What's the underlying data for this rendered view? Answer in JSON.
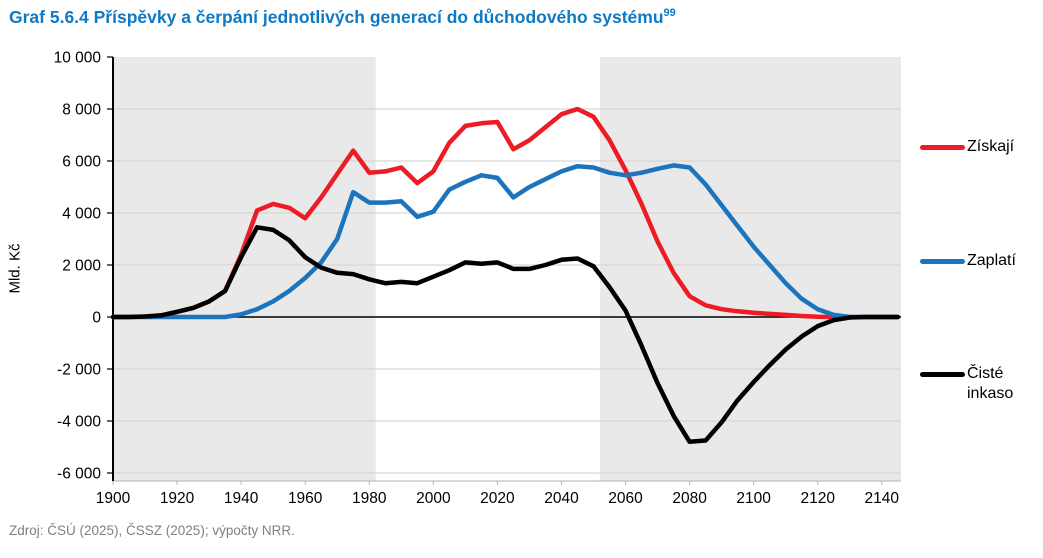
{
  "title": {
    "text": "Graf 5.6.4 Příspěvky a čerpání jednotlivých generací do důchodového systému",
    "footnote_marker": "99"
  },
  "source": "Zdroj: ČSÚ (2025), ČSSZ (2025); výpočty NRR.",
  "legend": {
    "items": [
      {
        "label": "Získají",
        "color": "#ed1c24"
      },
      {
        "label": "Zaplatí",
        "color": "#1c75bc"
      },
      {
        "label": "Čisté inkaso",
        "color": "#000000"
      }
    ]
  },
  "colors": {
    "title": "#0e79c4",
    "plot_background": "#e9e9e9",
    "highlight_band": "#ffffff",
    "gridline": "#d6d6d6",
    "axis": "#000000",
    "bottom_axis": "#b3b3b3",
    "source_text": "#808080"
  },
  "chart_data": {
    "type": "line",
    "title": "Graf 5.6.4 Příspěvky a čerpání jednotlivých generací do důchodového systému (99)",
    "xlabel": "",
    "ylabel": "Mld. Kč",
    "xlim": [
      1900,
      2146
    ],
    "ylim": [
      -6000,
      10000
    ],
    "grid": true,
    "legend_position": "right",
    "highlight_band": {
      "from": 1982,
      "to": 2052
    },
    "y_ticks": [
      {
        "value": 10000,
        "label": "10 000"
      },
      {
        "value": 8000,
        "label": "8 000"
      },
      {
        "value": 6000,
        "label": "6 000"
      },
      {
        "value": 4000,
        "label": "4 000"
      },
      {
        "value": 2000,
        "label": "2 000"
      },
      {
        "value": 0,
        "label": "0"
      },
      {
        "value": -2000,
        "label": "-2 000"
      },
      {
        "value": -4000,
        "label": "-4 000"
      },
      {
        "value": -6000,
        "label": "-6 000"
      }
    ],
    "x_ticks": [
      1900,
      1920,
      1940,
      1960,
      1980,
      2000,
      2020,
      2040,
      2060,
      2080,
      2100,
      2120,
      2140
    ],
    "x": [
      1900,
      1905,
      1910,
      1915,
      1920,
      1925,
      1930,
      1935,
      1940,
      1945,
      1950,
      1955,
      1960,
      1965,
      1970,
      1975,
      1980,
      1985,
      1990,
      1995,
      2000,
      2005,
      2010,
      2015,
      2020,
      2025,
      2030,
      2035,
      2040,
      2045,
      2050,
      2055,
      2060,
      2065,
      2070,
      2075,
      2080,
      2085,
      2090,
      2095,
      2100,
      2105,
      2110,
      2115,
      2120,
      2125,
      2130,
      2135,
      2140,
      2145
    ],
    "series": [
      {
        "name": "Získají",
        "color": "#ed1c24",
        "values": [
          0,
          0,
          20,
          60,
          200,
          350,
          600,
          1000,
          2400,
          4100,
          4350,
          4200,
          3800,
          4600,
          5500,
          6400,
          5550,
          5600,
          5750,
          5150,
          5600,
          6700,
          7350,
          7450,
          7500,
          6450,
          6800,
          7300,
          7800,
          8000,
          7700,
          6800,
          5650,
          4350,
          2900,
          1700,
          800,
          450,
          300,
          220,
          160,
          120,
          80,
          40,
          10,
          0,
          0,
          0,
          0,
          0
        ]
      },
      {
        "name": "Zaplatí",
        "color": "#1c75bc",
        "values": [
          0,
          0,
          0,
          0,
          0,
          0,
          0,
          0,
          100,
          300,
          600,
          1000,
          1500,
          2100,
          3000,
          4800,
          4400,
          4400,
          4450,
          3850,
          4050,
          4900,
          5200,
          5450,
          5350,
          4600,
          5000,
          5300,
          5600,
          5800,
          5750,
          5550,
          5450,
          5550,
          5700,
          5830,
          5750,
          5100,
          4300,
          3500,
          2700,
          2000,
          1300,
          700,
          300,
          80,
          0,
          0,
          0,
          0
        ]
      },
      {
        "name": "Čisté inkaso",
        "color": "#000000",
        "values": [
          0,
          0,
          20,
          60,
          200,
          350,
          600,
          1000,
          2300,
          3450,
          3350,
          2950,
          2300,
          1900,
          1700,
          1650,
          1450,
          1300,
          1350,
          1300,
          1550,
          1800,
          2100,
          2050,
          2100,
          1850,
          1850,
          2000,
          2200,
          2250,
          1950,
          1150,
          250,
          -1100,
          -2550,
          -3800,
          -4800,
          -4750,
          -4050,
          -3200,
          -2500,
          -1850,
          -1250,
          -750,
          -350,
          -120,
          -20,
          0,
          0,
          0
        ]
      }
    ]
  }
}
